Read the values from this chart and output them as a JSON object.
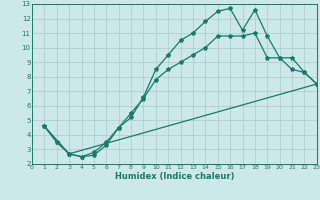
{
  "xlabel": "Humidex (Indice chaleur)",
  "xlim": [
    0,
    23
  ],
  "ylim": [
    2,
    13
  ],
  "xticks": [
    0,
    1,
    2,
    3,
    4,
    5,
    6,
    7,
    8,
    9,
    10,
    11,
    12,
    13,
    14,
    15,
    16,
    17,
    18,
    19,
    20,
    21,
    22,
    23
  ],
  "yticks": [
    2,
    3,
    4,
    5,
    6,
    7,
    8,
    9,
    10,
    11,
    12,
    13
  ],
  "bg_color": "#cce8e8",
  "grid_color": "#aacccc",
  "line_color": "#1a7a6a",
  "line1_x": [
    1,
    2,
    3,
    4,
    5,
    6,
    7,
    8,
    9,
    10,
    11,
    12,
    13,
    14,
    15,
    16,
    17,
    18,
    19,
    20,
    21,
    22,
    23
  ],
  "line1_y": [
    4.6,
    3.5,
    2.7,
    2.5,
    2.6,
    3.3,
    4.5,
    5.2,
    6.6,
    8.5,
    9.5,
    10.5,
    11.0,
    11.8,
    12.5,
    12.7,
    11.2,
    12.6,
    10.8,
    9.3,
    9.3,
    8.3,
    7.5
  ],
  "line2_x": [
    1,
    2,
    3,
    4,
    5,
    6,
    7,
    8,
    9,
    10,
    11,
    12,
    13,
    14,
    15,
    16,
    17,
    18,
    19,
    20,
    21,
    22,
    23
  ],
  "line2_y": [
    4.6,
    3.5,
    2.7,
    2.5,
    2.8,
    3.5,
    4.5,
    5.5,
    6.5,
    7.8,
    8.5,
    9.0,
    9.5,
    10.0,
    10.8,
    10.8,
    10.8,
    11.0,
    9.3,
    9.3,
    8.5,
    8.3,
    7.5
  ],
  "line3_x": [
    1,
    3,
    23
  ],
  "line3_y": [
    4.6,
    2.7,
    7.5
  ],
  "marker": "*",
  "markersize": 3,
  "linewidth": 0.9
}
